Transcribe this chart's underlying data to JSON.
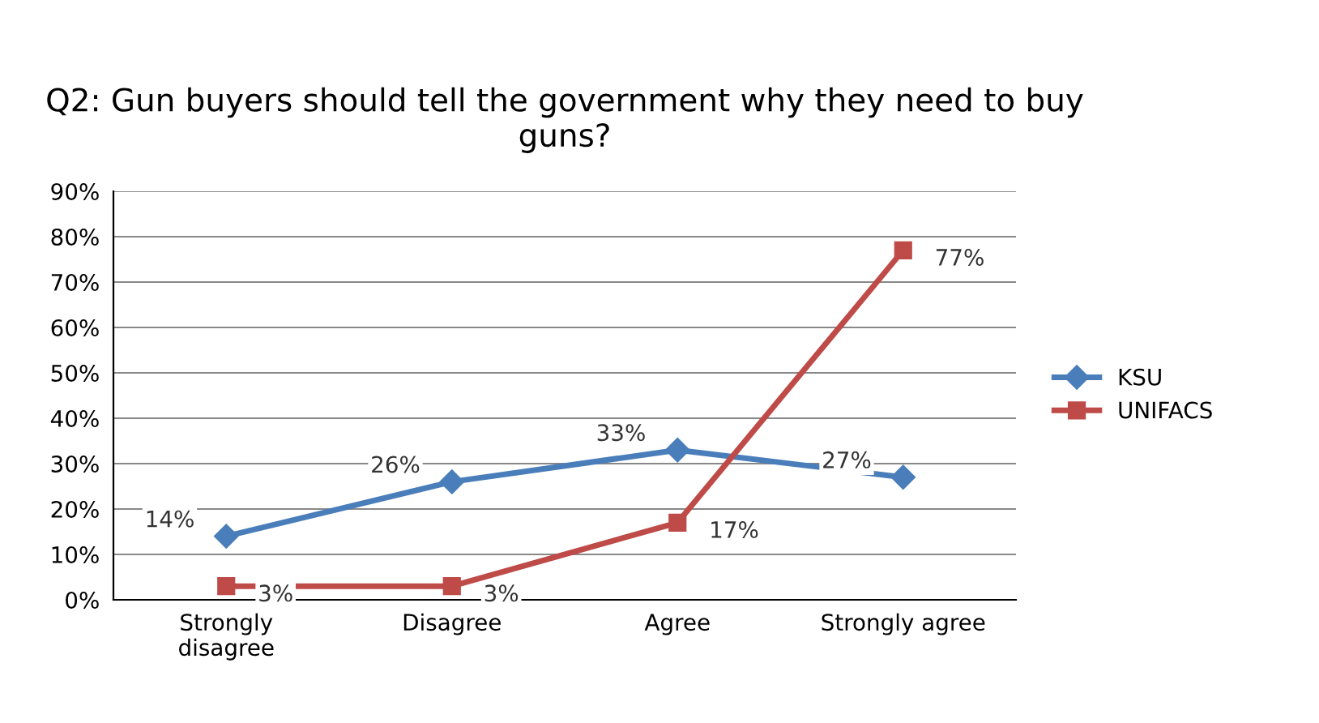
{
  "chart_data": {
    "type": "line",
    "title": "Q2: Gun buyers should tell the government why they need to buy guns?",
    "categories": [
      "Strongly\ndisagree",
      "Disagree",
      "Agree",
      "Strongly agree"
    ],
    "series": [
      {
        "name": "KSU",
        "color": "#4a7ebb",
        "marker": "diamond",
        "values": [
          14,
          26,
          33,
          27
        ],
        "value_labels": [
          "14%",
          "26%",
          "33%",
          "27%"
        ]
      },
      {
        "name": "UNIFACS",
        "color": "#be4b48",
        "marker": "square",
        "values": [
          3,
          3,
          17,
          77
        ],
        "value_labels": [
          "3%",
          "3%",
          "17%",
          "77%"
        ]
      }
    ],
    "ylim": [
      0,
      90
    ],
    "yticks": [
      {
        "value": 0,
        "label": "0%"
      },
      {
        "value": 10,
        "label": "10%"
      },
      {
        "value": 20,
        "label": "20%"
      },
      {
        "value": 30,
        "label": "30%"
      },
      {
        "value": 40,
        "label": "40%"
      },
      {
        "value": 50,
        "label": "50%"
      },
      {
        "value": 60,
        "label": "60%"
      },
      {
        "value": 70,
        "label": "70%"
      },
      {
        "value": 80,
        "label": "80%"
      },
      {
        "value": 90,
        "label": "90%"
      }
    ],
    "grid": "y",
    "legend": "right"
  }
}
